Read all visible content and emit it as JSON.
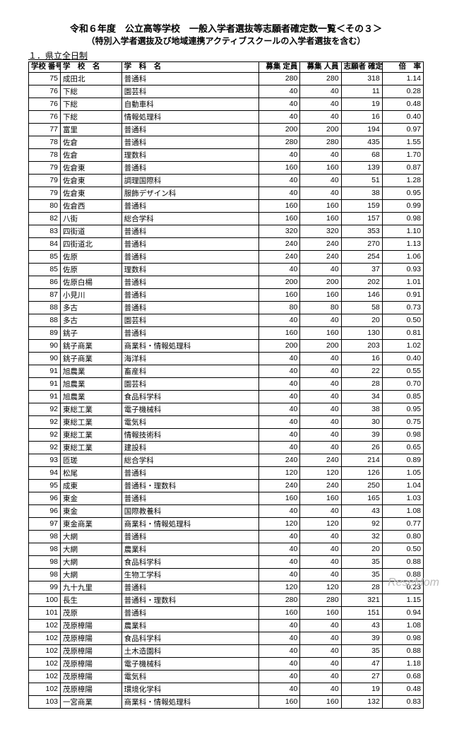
{
  "header": {
    "title1": "令和６年度　公立高等学校　一般入学者選抜等志願者確定数一覧＜その３＞",
    "title2": "（特別入学者選抜及び地域連携アクティブスクールの入学者選抜を含む）",
    "section": "１．県立全日制"
  },
  "columns": [
    "学校\n番号",
    "学　校　名",
    "学　科　名",
    "募集\n定員",
    "募集\n人員",
    "志願者\n確定数",
    "倍　率"
  ],
  "rows": [
    [
      "75",
      "成田北",
      "普通科",
      "280",
      "280",
      "318",
      "1.14"
    ],
    [
      "76",
      "下総",
      "園芸科",
      "40",
      "40",
      "11",
      "0.28"
    ],
    [
      "76",
      "下総",
      "自動車科",
      "40",
      "40",
      "19",
      "0.48"
    ],
    [
      "76",
      "下総",
      "情報処理科",
      "40",
      "40",
      "16",
      "0.40"
    ],
    [
      "77",
      "富里",
      "普通科",
      "200",
      "200",
      "194",
      "0.97"
    ],
    [
      "78",
      "佐倉",
      "普通科",
      "280",
      "280",
      "435",
      "1.55"
    ],
    [
      "78",
      "佐倉",
      "理数科",
      "40",
      "40",
      "68",
      "1.70"
    ],
    [
      "79",
      "佐倉東",
      "普通科",
      "160",
      "160",
      "139",
      "0.87"
    ],
    [
      "79",
      "佐倉東",
      "調理国際科",
      "40",
      "40",
      "51",
      "1.28"
    ],
    [
      "79",
      "佐倉東",
      "服飾デザイン科",
      "40",
      "40",
      "38",
      "0.95"
    ],
    [
      "80",
      "佐倉西",
      "普通科",
      "160",
      "160",
      "159",
      "0.99"
    ],
    [
      "82",
      "八街",
      "総合学科",
      "160",
      "160",
      "157",
      "0.98"
    ],
    [
      "83",
      "四街道",
      "普通科",
      "320",
      "320",
      "353",
      "1.10"
    ],
    [
      "84",
      "四街道北",
      "普通科",
      "240",
      "240",
      "270",
      "1.13"
    ],
    [
      "85",
      "佐原",
      "普通科",
      "240",
      "240",
      "254",
      "1.06"
    ],
    [
      "85",
      "佐原",
      "理数科",
      "40",
      "40",
      "37",
      "0.93"
    ],
    [
      "86",
      "佐原白楊",
      "普通科",
      "200",
      "200",
      "202",
      "1.01"
    ],
    [
      "87",
      "小見川",
      "普通科",
      "160",
      "160",
      "146",
      "0.91"
    ],
    [
      "88",
      "多古",
      "普通科",
      "80",
      "80",
      "58",
      "0.73"
    ],
    [
      "88",
      "多古",
      "園芸科",
      "40",
      "40",
      "20",
      "0.50"
    ],
    [
      "89",
      "銚子",
      "普通科",
      "160",
      "160",
      "130",
      "0.81"
    ],
    [
      "90",
      "銚子商業",
      "商業科・情報処理科",
      "200",
      "200",
      "203",
      "1.02"
    ],
    [
      "90",
      "銚子商業",
      "海洋科",
      "40",
      "40",
      "16",
      "0.40"
    ],
    [
      "91",
      "旭農業",
      "畜産科",
      "40",
      "40",
      "22",
      "0.55"
    ],
    [
      "91",
      "旭農業",
      "園芸科",
      "40",
      "40",
      "28",
      "0.70"
    ],
    [
      "91",
      "旭農業",
      "食品科学科",
      "40",
      "40",
      "34",
      "0.85"
    ],
    [
      "92",
      "東総工業",
      "電子機械科",
      "40",
      "40",
      "38",
      "0.95"
    ],
    [
      "92",
      "東総工業",
      "電気科",
      "40",
      "40",
      "30",
      "0.75"
    ],
    [
      "92",
      "東総工業",
      "情報技術科",
      "40",
      "40",
      "39",
      "0.98"
    ],
    [
      "92",
      "東総工業",
      "建設科",
      "40",
      "40",
      "26",
      "0.65"
    ],
    [
      "93",
      "匝瑳",
      "総合学科",
      "240",
      "240",
      "214",
      "0.89"
    ],
    [
      "94",
      "松尾",
      "普通科",
      "120",
      "120",
      "126",
      "1.05"
    ],
    [
      "95",
      "成東",
      "普通科・理数科",
      "240",
      "240",
      "250",
      "1.04"
    ],
    [
      "96",
      "東金",
      "普通科",
      "160",
      "160",
      "165",
      "1.03"
    ],
    [
      "96",
      "東金",
      "国際教養科",
      "40",
      "40",
      "43",
      "1.08"
    ],
    [
      "97",
      "東金商業",
      "商業科・情報処理科",
      "120",
      "120",
      "92",
      "0.77"
    ],
    [
      "98",
      "大網",
      "普通科",
      "40",
      "40",
      "32",
      "0.80"
    ],
    [
      "98",
      "大網",
      "農業科",
      "40",
      "40",
      "20",
      "0.50"
    ],
    [
      "98",
      "大網",
      "食品科学科",
      "40",
      "40",
      "35",
      "0.88"
    ],
    [
      "98",
      "大網",
      "生物工学科",
      "40",
      "40",
      "35",
      "0.88"
    ],
    [
      "99",
      "九十九里",
      "普通科",
      "120",
      "120",
      "28",
      "0.23"
    ],
    [
      "100",
      "長生",
      "普通科・理数科",
      "280",
      "280",
      "321",
      "1.15"
    ],
    [
      "101",
      "茂原",
      "普通科",
      "160",
      "160",
      "151",
      "0.94"
    ],
    [
      "102",
      "茂原樟陽",
      "農業科",
      "40",
      "40",
      "43",
      "1.08"
    ],
    [
      "102",
      "茂原樟陽",
      "食品科学科",
      "40",
      "40",
      "39",
      "0.98"
    ],
    [
      "102",
      "茂原樟陽",
      "土木造園科",
      "40",
      "40",
      "35",
      "0.88"
    ],
    [
      "102",
      "茂原樟陽",
      "電子機械科",
      "40",
      "40",
      "47",
      "1.18"
    ],
    [
      "102",
      "茂原樟陽",
      "電気科",
      "40",
      "40",
      "27",
      "0.68"
    ],
    [
      "102",
      "茂原樟陽",
      "環境化学科",
      "40",
      "40",
      "19",
      "0.48"
    ],
    [
      "103",
      "一宮商業",
      "商業科・情報処理科",
      "160",
      "160",
      "132",
      "0.83"
    ]
  ],
  "watermark": "ReseMom"
}
